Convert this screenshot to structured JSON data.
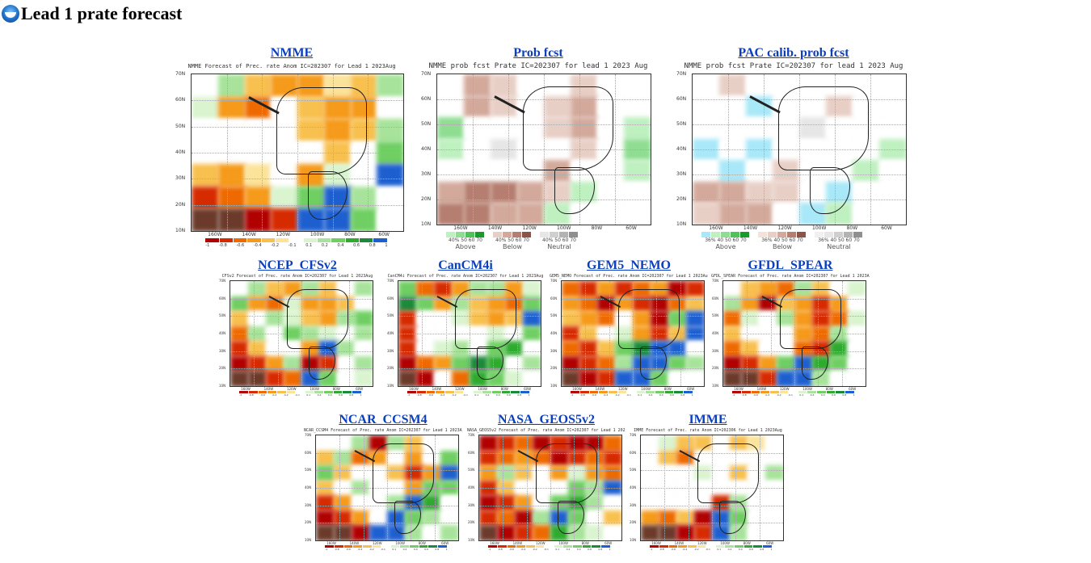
{
  "page": {
    "title": "Lead 1 prate forecast",
    "logo_icon": "noaa-logo-icon"
  },
  "panels": [
    {
      "id": "nmme",
      "link": "NMME",
      "caption": "NMME Forecast of Prec. rate Anom IC=202307 for Lead 1 2023Aug",
      "type": "anom"
    },
    {
      "id": "prob",
      "link": "Prob fcst",
      "caption": "NMME prob fcst Prate IC=202307 for lead 1 2023 Aug",
      "type": "prob"
    },
    {
      "id": "pac",
      "link": "PAC calib. prob fcst",
      "caption": "NMME prob fcst Prate IC=202307 for lead 1 2023 Aug",
      "type": "prob"
    },
    {
      "id": "cfsv2",
      "link": "NCEP_CFSv2",
      "caption": "CFSv2 Forecast of Prec. rate Anom IC=202307 for Lead 1 2023Aug",
      "type": "anom"
    },
    {
      "id": "cancm4i",
      "link": "CanCM4i",
      "caption": "CanCM4i Forecast of Prec. rate Anom IC=202307 for Lead 1 2023Aug",
      "type": "anom"
    },
    {
      "id": "gem5",
      "link": "GEM5_NEMO",
      "caption": "GEM5_NEMO Forecast of Prec. rate Anom IC=202307 for Lead 1 2023Aug",
      "type": "anom"
    },
    {
      "id": "gfdl",
      "link": "GFDL_SPEAR",
      "caption": "GFDL_SPEAR Forecast of Prec. rate Anom IC=202307 for Lead 1 2023Aug",
      "type": "anom"
    },
    {
      "id": "ccsm4",
      "link": "NCAR_CCSM4",
      "caption": "NCAR_CCSM4 Forecast of Prec. rate Anom IC=202307 for Lead 1 2023Aug",
      "type": "anom"
    },
    {
      "id": "geos5",
      "link": "NASA_GEOS5v2",
      "caption": "NASA_GEOS5v2 Forecast of Prec. rate Anom IC=202307 for Lead 1 2023Aug",
      "type": "anom"
    },
    {
      "id": "imme",
      "link": "IMME",
      "caption": "IMME Forecast of Prec. rate Anom IC=202306 for Lead 1 2023Aug",
      "type": "anom"
    }
  ],
  "map_axes": {
    "lat_labels": [
      "70N",
      "60N",
      "50N",
      "40N",
      "30N",
      "20N",
      "10N"
    ],
    "lon_labels": [
      "160W",
      "140W",
      "120W",
      "100W",
      "80W",
      "60W"
    ]
  },
  "anom_colorbar": {
    "labels": [
      "-1",
      "-0.8",
      "-0.6",
      "-0.4",
      "-0.2",
      "-0.1",
      "0.1",
      "0.2",
      "0.4",
      "0.6",
      "0.8",
      "1"
    ],
    "colors": [
      "#b00000",
      "#d62a00",
      "#ee6a00",
      "#f59a1a",
      "#f8c04e",
      "#fbe39a",
      "#ffffff",
      "#d9f4cf",
      "#a7e39a",
      "#6fcf62",
      "#2eaa2e",
      "#1b8a3a",
      "#1e5fd0"
    ]
  },
  "prob_legend": {
    "groups": [
      {
        "name": "Above",
        "nums": "40%  50  60  70",
        "colors": [
          "#bff0c0",
          "#8fdd92",
          "#4fc25a",
          "#1a9a2a"
        ]
      },
      {
        "name": "Below",
        "nums": "40%  50  60  70",
        "colors": [
          "#e8cfc6",
          "#d3a99b",
          "#b57e70",
          "#8a5548"
        ]
      },
      {
        "name": "Neutral",
        "nums": "40%  50  60  70",
        "colors": [
          "#e6e6e6",
          "#cfcfcf",
          "#b3b3b3",
          "#8f8f8f"
        ]
      }
    ],
    "pac_groups": [
      {
        "name": "Above",
        "nums": "36%  40  50  60  70",
        "colors": [
          "#a8e8f8",
          "#bff0c0",
          "#8fdd92",
          "#4fc25a",
          "#1a9a2a"
        ]
      },
      {
        "name": "Below",
        "nums": "36%  40  50  60  70",
        "colors": [
          "#f4e1da",
          "#e8cfc6",
          "#d3a99b",
          "#b57e70",
          "#8a5548"
        ]
      },
      {
        "name": "Neutral",
        "nums": "36%  40  50  60  70",
        "colors": [
          "#f0f0f0",
          "#e6e6e6",
          "#cfcfcf",
          "#b3b3b3",
          "#8f8f8f"
        ]
      }
    ]
  }
}
